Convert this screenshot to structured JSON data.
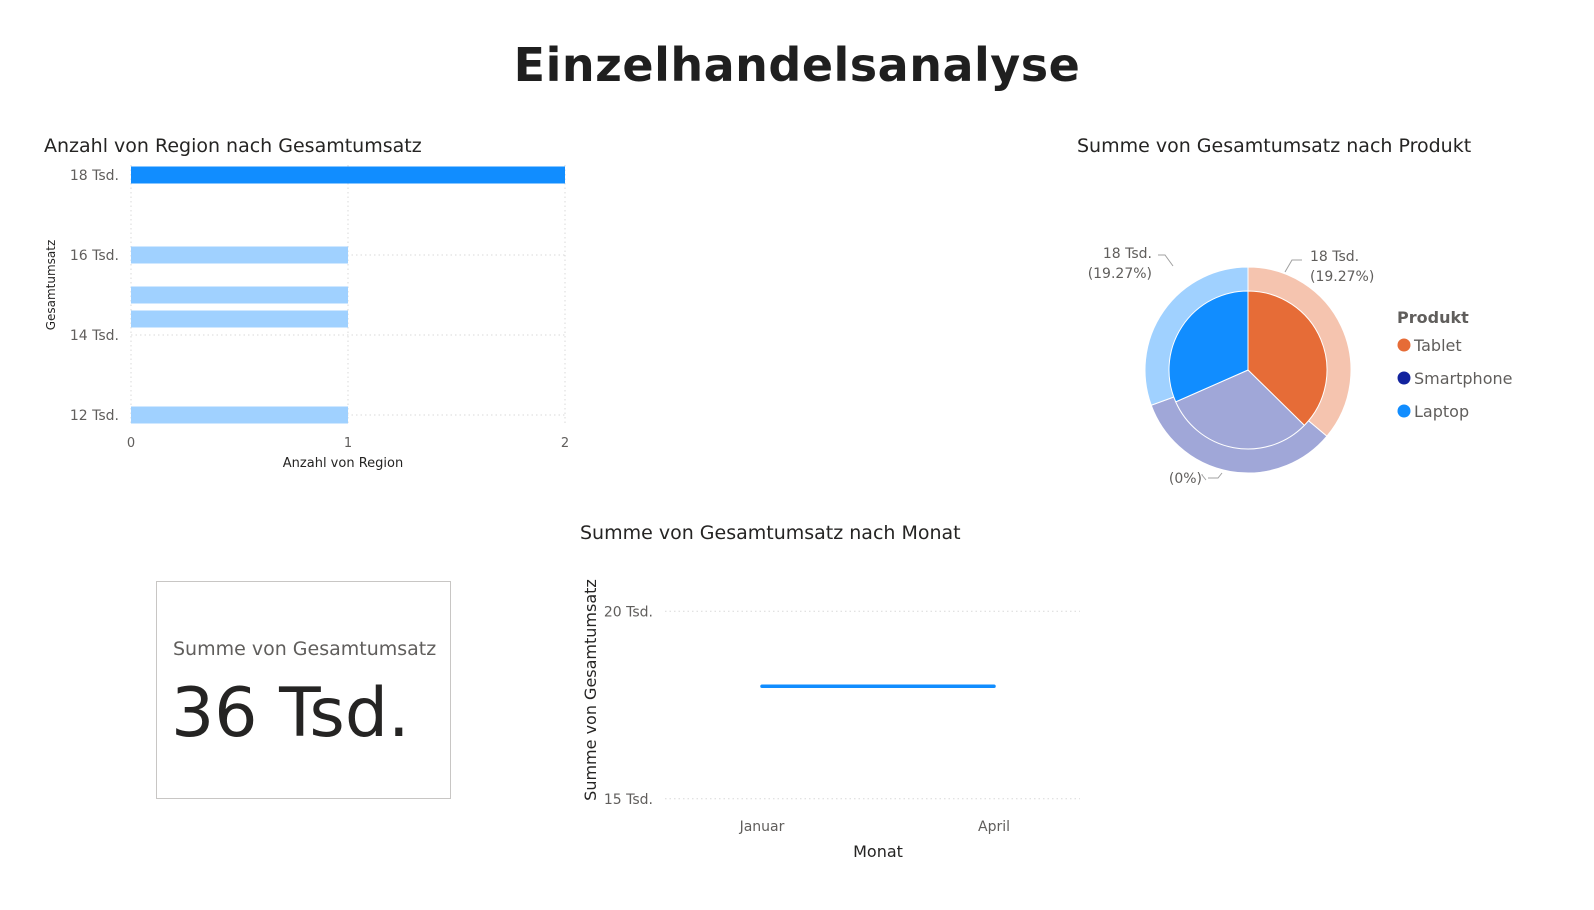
{
  "page": {
    "title": "Einzelhandelsanalyse"
  },
  "card": {
    "label": "Summe von Gesamtumsatz",
    "value": "36 Tsd."
  },
  "chart_data": [
    {
      "type": "bar",
      "orientation": "horizontal",
      "title": "Anzahl von Region nach Gesamtumsatz",
      "xlabel": "Anzahl von Region",
      "ylabel": "Gesamtumsatz",
      "xlim": [
        0,
        2
      ],
      "ylim": [
        11750,
        18250
      ],
      "x_ticks": [
        0,
        1,
        2
      ],
      "x_tick_labels": [
        "0",
        "1",
        "2"
      ],
      "y_ticks": [
        12000,
        14000,
        16000,
        18000
      ],
      "y_tick_labels": [
        "12 Tsd.",
        "14 Tsd.",
        "16 Tsd.",
        "18 Tsd."
      ],
      "grid": true,
      "bars": [
        {
          "y": 18000,
          "value": 2,
          "color": "#118dff"
        },
        {
          "y": 16000,
          "value": 1,
          "color": "#a0d1ff"
        },
        {
          "y": 15000,
          "value": 1,
          "color": "#a0d1ff"
        },
        {
          "y": 14400,
          "value": 1,
          "color": "#a0d1ff"
        },
        {
          "y": 12000,
          "value": 1,
          "color": "#a0d1ff"
        }
      ]
    },
    {
      "type": "pie",
      "title": "Summe von Gesamtumsatz nach Produkt",
      "legend_title": "Produkt",
      "legend_position": "right",
      "categories": [
        "Tablet",
        "Smartphone",
        "Laptop"
      ],
      "colors": [
        "#e66c37",
        "#12239e",
        "#118dff"
      ],
      "outer_colors": [
        "#f5c4af",
        "#a0a7d8",
        "#a0d1ff"
      ],
      "values": [
        18,
        0,
        18
      ],
      "highlighted_values": [
        13,
        12,
        11
      ],
      "data_labels": [
        {
          "value": "18 Tsd.",
          "percent": "(19.27%)"
        },
        {
          "value": "",
          "percent": "(0%)"
        },
        {
          "value": "18 Tsd.",
          "percent": "(19.27%)"
        }
      ]
    },
    {
      "type": "line",
      "title": "Summe von Gesamtumsatz nach Monat",
      "xlabel": "Monat",
      "ylabel": "Summe von Gesamtumsatz",
      "x": [
        "Januar",
        "April"
      ],
      "y": [
        18000,
        18000
      ],
      "ylim": [
        14700,
        21100
      ],
      "y_ticks": [
        15000,
        20000
      ],
      "y_tick_labels": [
        "15 Tsd.",
        "20 Tsd."
      ],
      "grid": true,
      "color": "#118dff"
    }
  ]
}
